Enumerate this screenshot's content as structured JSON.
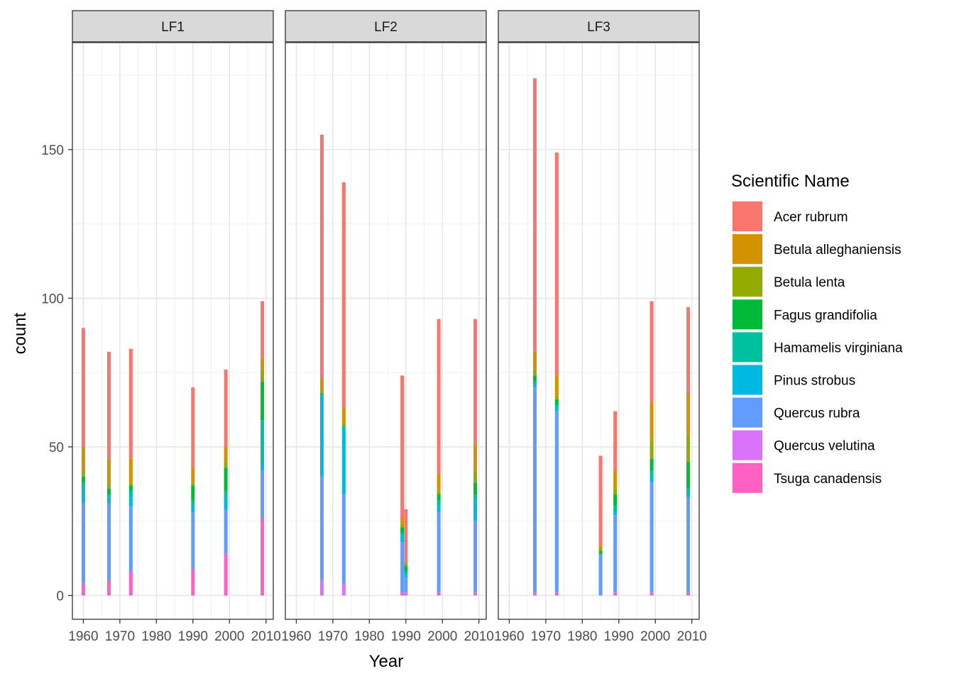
{
  "chart_data": {
    "type": "bar",
    "stacked": true,
    "facet_variable": "panel",
    "panels": [
      "LF1",
      "LF2",
      "LF3"
    ],
    "xlabel": "Year",
    "ylabel": "count",
    "xlim": [
      1957,
      2012
    ],
    "ylim": [
      -8,
      186
    ],
    "x_ticks": [
      1960,
      1970,
      1980,
      1990,
      2000,
      2010
    ],
    "y_ticks": [
      0,
      50,
      100,
      150
    ],
    "grid": true,
    "legend": {
      "title": "Scientific Name",
      "placement": "right",
      "entries": [
        {
          "name": "Acer rubrum",
          "color": "#F8766D"
        },
        {
          "name": "Betula alleghaniensis",
          "color": "#D39200"
        },
        {
          "name": "Betula lenta",
          "color": "#93AA00"
        },
        {
          "name": "Fagus grandifolia",
          "color": "#00BA38"
        },
        {
          "name": "Hamamelis virginiana",
          "color": "#00C19F"
        },
        {
          "name": "Pinus strobus",
          "color": "#00B9E3"
        },
        {
          "name": "Quercus rubra",
          "color": "#619CFF"
        },
        {
          "name": "Quercus velutina",
          "color": "#DB72FB"
        },
        {
          "name": "Tsuga canadensis",
          "color": "#FF61C3"
        }
      ]
    },
    "series_order": [
      "Acer rubrum",
      "Betula alleghaniensis",
      "Betula lenta",
      "Fagus grandifolia",
      "Hamamelis virginiana",
      "Pinus strobus",
      "Quercus rubra",
      "Quercus velutina",
      "Tsuga canadensis"
    ],
    "facets": [
      {
        "panel": "LF1",
        "bars": [
          {
            "x": 1960,
            "counts": {
              "Acer rubrum": 40,
              "Betula alleghaniensis": 8,
              "Betula lenta": 2,
              "Fagus grandifolia": 2,
              "Hamamelis virginiana": 2,
              "Pinus strobus": 5,
              "Quercus rubra": 27,
              "Quercus velutina": 0,
              "Tsuga canadensis": 4
            }
          },
          {
            "x": 1967,
            "counts": {
              "Acer rubrum": 36,
              "Betula alleghaniensis": 8,
              "Betula lenta": 2,
              "Fagus grandifolia": 2,
              "Hamamelis virginiana": 1,
              "Pinus strobus": 2,
              "Quercus rubra": 26,
              "Quercus velutina": 0,
              "Tsuga canadensis": 5
            }
          },
          {
            "x": 1973,
            "counts": {
              "Acer rubrum": 37,
              "Betula alleghaniensis": 8,
              "Betula lenta": 1,
              "Fagus grandifolia": 2,
              "Hamamelis virginiana": 2,
              "Pinus strobus": 3,
              "Quercus rubra": 22,
              "Quercus velutina": 0,
              "Tsuga canadensis": 8
            }
          },
          {
            "x": 1990,
            "counts": {
              "Acer rubrum": 27,
              "Betula alleghaniensis": 5,
              "Betula lenta": 1,
              "Fagus grandifolia": 5,
              "Hamamelis virginiana": 2,
              "Pinus strobus": 2,
              "Quercus rubra": 19,
              "Quercus velutina": 0,
              "Tsuga canadensis": 9
            }
          },
          {
            "x": 1999,
            "counts": {
              "Acer rubrum": 26,
              "Betula alleghaniensis": 5,
              "Betula lenta": 2,
              "Fagus grandifolia": 8,
              "Hamamelis virginiana": 2,
              "Pinus strobus": 4,
              "Quercus rubra": 15,
              "Quercus velutina": 0,
              "Tsuga canadensis": 14
            }
          },
          {
            "x": 2009,
            "counts": {
              "Acer rubrum": 19,
              "Betula alleghaniensis": 4,
              "Betula lenta": 4,
              "Fagus grandifolia": 13,
              "Hamamelis virginiana": 15,
              "Pinus strobus": 2,
              "Quercus rubra": 16,
              "Quercus velutina": 0,
              "Tsuga canadensis": 26
            }
          }
        ]
      },
      {
        "panel": "LF2",
        "bars": [
          {
            "x": 1967,
            "counts": {
              "Acer rubrum": 82,
              "Betula alleghaniensis": 4,
              "Betula lenta": 1,
              "Fagus grandifolia": 0,
              "Hamamelis virginiana": 1,
              "Pinus strobus": 27,
              "Quercus rubra": 35,
              "Quercus velutina": 5,
              "Tsuga canadensis": 0
            }
          },
          {
            "x": 1973,
            "counts": {
              "Acer rubrum": 76,
              "Betula alleghaniensis": 5,
              "Betula lenta": 1,
              "Fagus grandifolia": 0,
              "Hamamelis virginiana": 1,
              "Pinus strobus": 22,
              "Quercus rubra": 30,
              "Quercus velutina": 4,
              "Tsuga canadensis": 0
            }
          },
          {
            "x": 1989,
            "counts": {
              "Acer rubrum": 48,
              "Betula alleghaniensis": 2,
              "Betula lenta": 1,
              "Fagus grandifolia": 2,
              "Hamamelis virginiana": 1,
              "Pinus strobus": 2,
              "Quercus rubra": 17,
              "Quercus velutina": 0,
              "Tsuga canadensis": 1
            }
          },
          {
            "x": 1990,
            "counts": {
              "Acer rubrum": 18,
              "Betula alleghaniensis": 0,
              "Betula lenta": 1,
              "Fagus grandifolia": 2,
              "Hamamelis virginiana": 1,
              "Pinus strobus": 1,
              "Quercus rubra": 5,
              "Quercus velutina": 1,
              "Tsuga canadensis": 0
            }
          },
          {
            "x": 1999,
            "counts": {
              "Acer rubrum": 52,
              "Betula alleghaniensis": 6,
              "Betula lenta": 1,
              "Fagus grandifolia": 2,
              "Hamamelis virginiana": 2,
              "Pinus strobus": 2,
              "Quercus rubra": 27,
              "Quercus velutina": 0,
              "Tsuga canadensis": 1
            }
          },
          {
            "x": 2009,
            "counts": {
              "Acer rubrum": 42,
              "Betula alleghaniensis": 9,
              "Betula lenta": 4,
              "Fagus grandifolia": 4,
              "Hamamelis virginiana": 2,
              "Pinus strobus": 7,
              "Quercus rubra": 24,
              "Quercus velutina": 0,
              "Tsuga canadensis": 1
            }
          }
        ]
      },
      {
        "panel": "LF3",
        "bars": [
          {
            "x": 1967,
            "counts": {
              "Acer rubrum": 92,
              "Betula alleghaniensis": 6,
              "Betula lenta": 2,
              "Fagus grandifolia": 2,
              "Hamamelis virginiana": 1,
              "Pinus strobus": 1,
              "Quercus rubra": 69,
              "Quercus velutina": 0,
              "Tsuga canadensis": 1
            }
          },
          {
            "x": 1973,
            "counts": {
              "Acer rubrum": 75,
              "Betula alleghaniensis": 7,
              "Betula lenta": 1,
              "Fagus grandifolia": 2,
              "Hamamelis virginiana": 1,
              "Pinus strobus": 1,
              "Quercus rubra": 61,
              "Quercus velutina": 0,
              "Tsuga canadensis": 1
            }
          },
          {
            "x": 1985,
            "counts": {
              "Acer rubrum": 30,
              "Betula alleghaniensis": 1,
              "Betula lenta": 1,
              "Fagus grandifolia": 1,
              "Hamamelis virginiana": 0,
              "Pinus strobus": 0,
              "Quercus rubra": 14,
              "Quercus velutina": 0,
              "Tsuga canadensis": 0
            }
          },
          {
            "x": 1989,
            "counts": {
              "Acer rubrum": 20,
              "Betula alleghaniensis": 6,
              "Betula lenta": 2,
              "Fagus grandifolia": 4,
              "Hamamelis virginiana": 2,
              "Pinus strobus": 1,
              "Quercus rubra": 26,
              "Quercus velutina": 0,
              "Tsuga canadensis": 1
            }
          },
          {
            "x": 1999,
            "counts": {
              "Acer rubrum": 34,
              "Betula alleghaniensis": 13,
              "Betula lenta": 6,
              "Fagus grandifolia": 4,
              "Hamamelis virginiana": 3,
              "Pinus strobus": 1,
              "Quercus rubra": 37,
              "Quercus velutina": 0,
              "Tsuga canadensis": 1
            }
          },
          {
            "x": 2009,
            "counts": {
              "Acer rubrum": 29,
              "Betula alleghaniensis": 14,
              "Betula lenta": 9,
              "Fagus grandifolia": 9,
              "Hamamelis virginiana": 2,
              "Pinus strobus": 1,
              "Quercus rubra": 32,
              "Quercus velutina": 0,
              "Tsuga canadensis": 1
            }
          }
        ]
      }
    ]
  }
}
